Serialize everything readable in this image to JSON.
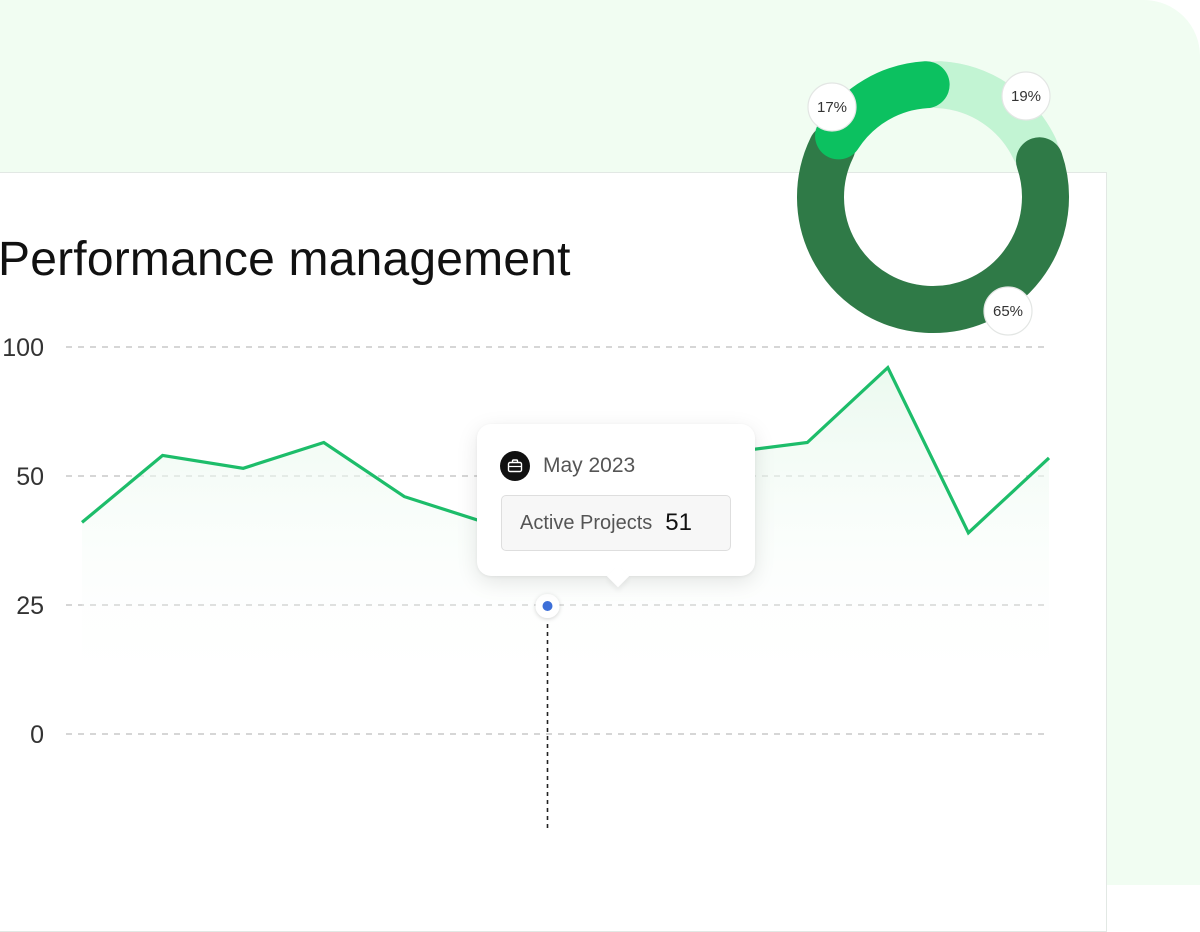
{
  "title": "Performance management",
  "chart_data": [
    {
      "type": "line",
      "title": "Performance management",
      "ylim": [
        0,
        100
      ],
      "yticks": [
        "0",
        "25",
        "50",
        "100"
      ],
      "grid": true,
      "series": [
        {
          "values": [
            41,
            58,
            53,
            63,
            46,
            41,
            41,
            56,
            59,
            63,
            92,
            39,
            57
          ],
          "color": "#1dbd6a"
        }
      ],
      "highlight": {
        "x_index": 6,
        "marker_color": "#3d6fd8"
      }
    },
    {
      "type": "pie",
      "variant": "donut",
      "slices": [
        {
          "label": "19%",
          "value": 19,
          "color": "#c2f4d3"
        },
        {
          "label": "65%",
          "value": 65,
          "color": "#2f7a47"
        },
        {
          "label": "17%",
          "value": 17,
          "color": "#0cc160"
        }
      ]
    }
  ],
  "tooltip": {
    "date": "May 2023",
    "metric_label": "Active Projects",
    "metric_value": "51",
    "icon": "briefcase-icon"
  }
}
